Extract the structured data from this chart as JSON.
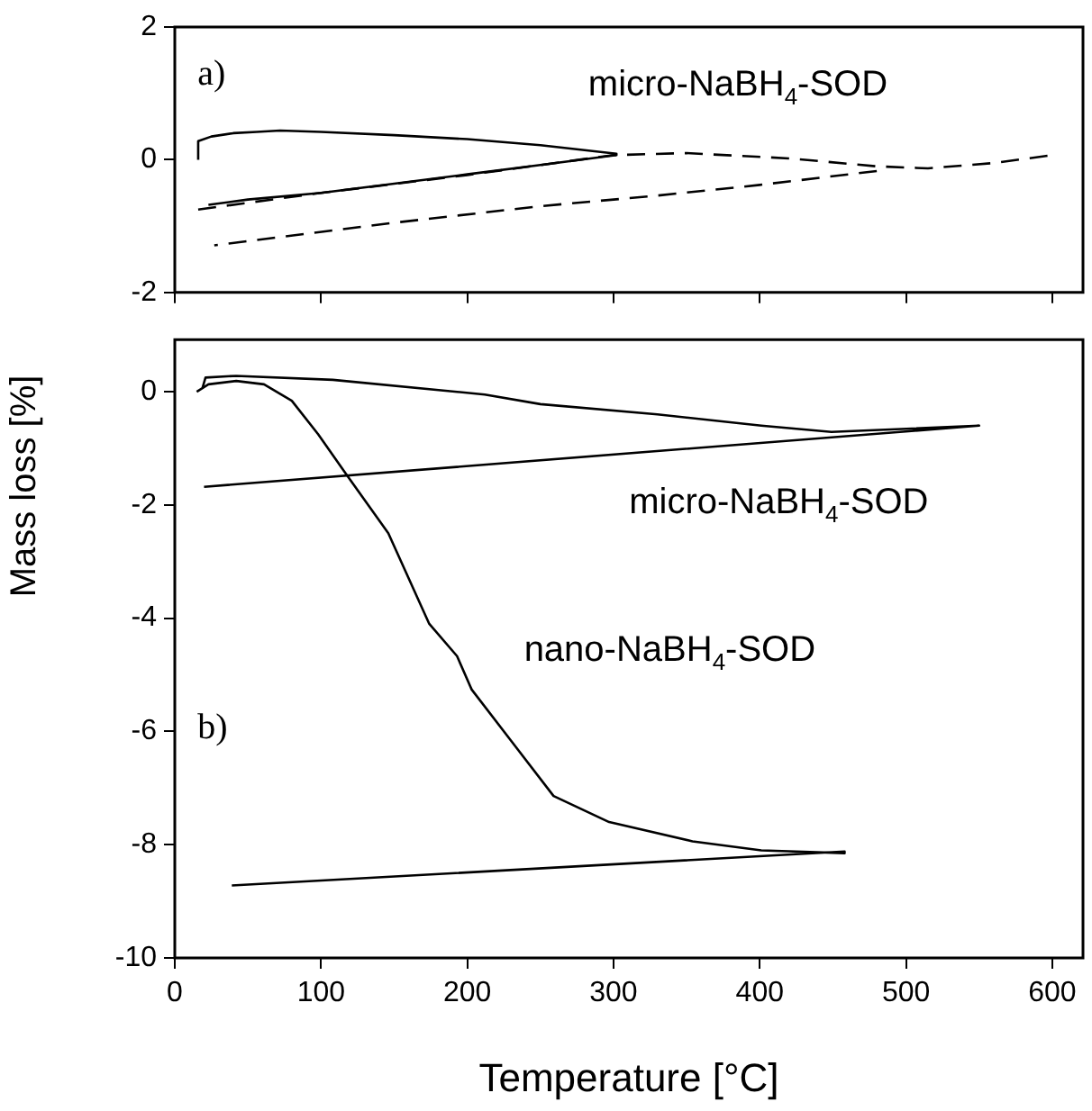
{
  "chart_data": [
    {
      "type": "line",
      "ylabel": "Mass loss [%]",
      "xlim": [
        0,
        621
      ],
      "xticks": [
        0,
        100,
        200,
        300,
        400,
        500,
        600
      ],
      "ylim": [
        -2,
        2
      ],
      "yticks": [
        -2,
        0,
        2
      ],
      "tick_labels": "y",
      "marker": "none",
      "annotations": [
        "a)",
        "micro-NaBH$_{4}$-SOD"
      ],
      "series": [
        {
          "color": "#000000",
          "line_style": "solid",
          "x": [
            16,
            16,
            25,
            40,
            56,
            72,
            100,
            150,
            200,
            250,
            302,
            302,
            250,
            200,
            150,
            100,
            50,
            23
          ],
          "values": [
            0,
            0.28,
            0.35,
            0.4,
            0.42,
            0.44,
            0.42,
            0.37,
            0.31,
            0.22,
            0.09,
            0.07,
            -0.08,
            -0.22,
            -0.36,
            -0.5,
            -0.6,
            -0.68
          ]
        },
        {
          "color": "#000000",
          "line_style": "dashed",
          "x": [
            16,
            100,
            200,
            300,
            350,
            420,
            480,
            515,
            560,
            600
          ],
          "values": [
            -0.75,
            -0.5,
            -0.23,
            0.07,
            0.1,
            0.02,
            -0.1,
            -0.13,
            -0.05,
            0.07
          ]
        },
        {
          "color": "#000000",
          "line_style": "dashed",
          "x": [
            480,
            400,
            330,
            250,
            150,
            27
          ],
          "values": [
            -0.17,
            -0.38,
            -0.54,
            -0.7,
            -0.95,
            -1.29
          ]
        }
      ]
    },
    {
      "type": "line",
      "xlabel": "Temperature [°C]",
      "xlim": [
        0,
        621
      ],
      "xticks": [
        0,
        100,
        200,
        300,
        400,
        500,
        600
      ],
      "ylim": [
        -10,
        0.92
      ],
      "yticks": [
        -10,
        -8,
        -6,
        -4,
        -2,
        0
      ],
      "marker": "none",
      "annotations": [
        "b)",
        "micro-NaBH$_{4}$-SOD",
        "nano-NaBH$_{4}$-SOD"
      ],
      "series": [
        {
          "color": "#000000",
          "line_style": "solid",
          "x": [
            19,
            21,
            42,
            108,
            212,
            250,
            330,
            401,
            449,
            550,
            20
          ],
          "values": [
            0.07,
            0.25,
            0.28,
            0.21,
            -0.05,
            -0.22,
            -0.4,
            -0.6,
            -0.71,
            -0.6,
            -1.68
          ]
        },
        {
          "color": "#000000",
          "line_style": "solid",
          "x": [
            15,
            23,
            42,
            61,
            80,
            98,
            117,
            146,
            174,
            193,
            203,
            231,
            259,
            297,
            354,
            401,
            458,
            458,
            39
          ],
          "values": [
            0,
            0.13,
            0.19,
            0.13,
            -0.16,
            -0.75,
            -1.45,
            -2.5,
            -4.1,
            -4.67,
            -5.26,
            -6.2,
            -7.14,
            -7.6,
            -7.94,
            -8.1,
            -8.15,
            -8.12,
            -8.72
          ]
        }
      ]
    }
  ]
}
